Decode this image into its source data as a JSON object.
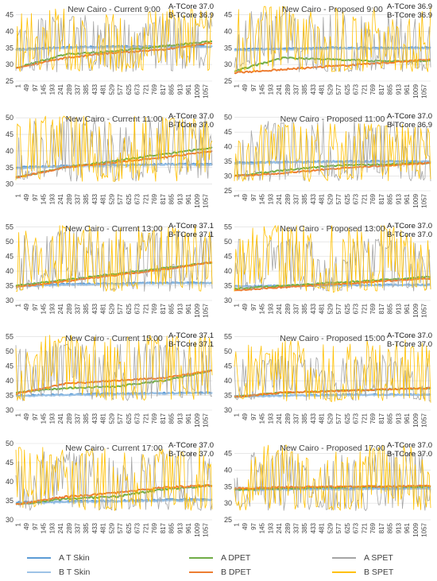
{
  "colors": {
    "a_t_skin": "#5B9BD5",
    "b_t_skin": "#9DC3E6",
    "a_dpet": "#70AD47",
    "b_dpet": "#ED7D31",
    "a_spet": "#A5A5A5",
    "b_spet": "#FFC000",
    "grid": "#D9D9D9",
    "text": "#404040"
  },
  "x_ticks": [
    "1",
    "49",
    "97",
    "145",
    "193",
    "241",
    "289",
    "337",
    "385",
    "433",
    "481",
    "529",
    "577",
    "625",
    "673",
    "721",
    "769",
    "817",
    "865",
    "913",
    "961",
    "1009",
    "1057"
  ],
  "legend": [
    {
      "key": "a_t_skin",
      "label": "A T Skin"
    },
    {
      "key": "a_dpet",
      "label": "A DPET"
    },
    {
      "key": "a_spet",
      "label": "A SPET"
    },
    {
      "key": "b_t_skin",
      "label": "B T Skin"
    },
    {
      "key": "b_dpet",
      "label": "B DPET"
    },
    {
      "key": "b_spet",
      "label": "B SPET"
    }
  ],
  "chart_data": [
    {
      "type": "line",
      "title": "New Cairo - Current 9:00",
      "a_tcore": "A-TCore 37.0",
      "b_tcore": "B-TCore 36.9",
      "y_ticks": [
        25,
        30,
        35,
        40,
        45
      ],
      "ylim": [
        25,
        48
      ],
      "series": [
        {
          "name": "A T Skin",
          "key": "a_t_skin",
          "values": [
            34.5,
            35.2,
            35.4,
            35.5,
            35.5
          ]
        },
        {
          "name": "B T Skin",
          "key": "b_t_skin",
          "values": [
            34.3,
            35.0,
            35.2,
            35.3,
            35.4
          ]
        },
        {
          "name": "A DPET",
          "key": "a_dpet",
          "values": [
            29,
            33,
            34,
            35.5,
            37
          ]
        },
        {
          "name": "B DPET",
          "key": "b_dpet",
          "values": [
            29,
            32,
            33.5,
            34.5,
            36.5
          ]
        },
        {
          "name": "A SPET",
          "key": "a_spet",
          "values": [
            31,
            44,
            30,
            42,
            37
          ]
        },
        {
          "name": "B SPET",
          "key": "b_spet",
          "values": [
            30,
            46,
            31,
            44,
            40
          ]
        }
      ]
    },
    {
      "type": "line",
      "title": "New Cairo - Proposed 9:00",
      "a_tcore": "A-TCore 36.9",
      "b_tcore": "B-TCore 36.9",
      "y_ticks": [
        25,
        30,
        35,
        40,
        45
      ],
      "ylim": [
        25,
        48
      ],
      "series": [
        {
          "name": "A T Skin",
          "key": "a_t_skin",
          "values": [
            34.5,
            34.8,
            35.0,
            35.0,
            35.0
          ]
        },
        {
          "name": "B T Skin",
          "key": "b_t_skin",
          "values": [
            34.3,
            34.6,
            34.8,
            34.8,
            34.9
          ]
        },
        {
          "name": "A DPET",
          "key": "a_dpet",
          "values": [
            28,
            32,
            31.5,
            31,
            31
          ]
        },
        {
          "name": "B DPET",
          "key": "b_dpet",
          "values": [
            27.5,
            28.5,
            29.5,
            30.5,
            31.5
          ]
        },
        {
          "name": "A SPET",
          "key": "a_spet",
          "values": [
            30,
            45,
            30,
            38,
            31
          ]
        },
        {
          "name": "B SPET",
          "key": "b_spet",
          "values": [
            28,
            47,
            29,
            40,
            30
          ]
        }
      ]
    },
    {
      "type": "line",
      "title": "New Cairo - Current 11:00",
      "a_tcore": "A-TCore 37.0",
      "b_tcore": "B-TCore 37.0",
      "y_ticks": [
        30,
        35,
        40,
        45,
        50
      ],
      "ylim": [
        28,
        51
      ],
      "series": [
        {
          "name": "A T Skin",
          "key": "a_t_skin",
          "values": [
            35.0,
            35.5,
            35.8,
            36.0,
            36.0
          ]
        },
        {
          "name": "B T Skin",
          "key": "b_t_skin",
          "values": [
            34.8,
            35.3,
            35.6,
            35.8,
            35.9
          ]
        },
        {
          "name": "A DPET",
          "key": "a_dpet",
          "values": [
            32,
            35,
            37,
            39,
            41
          ]
        },
        {
          "name": "B DPET",
          "key": "b_dpet",
          "values": [
            32,
            35,
            36.5,
            38,
            40
          ]
        },
        {
          "name": "A SPET",
          "key": "a_spet",
          "values": [
            33,
            49,
            32,
            48,
            40
          ]
        },
        {
          "name": "B SPET",
          "key": "b_spet",
          "values": [
            32,
            50,
            31,
            46,
            42
          ]
        }
      ]
    },
    {
      "type": "line",
      "title": "New Cairo - Proposed 11:00",
      "a_tcore": "A-TCore 37.0",
      "b_tcore": "B-TCore 36.9",
      "y_ticks": [
        25,
        30,
        35,
        40,
        45,
        50
      ],
      "ylim": [
        25,
        51
      ],
      "series": [
        {
          "name": "A T Skin",
          "key": "a_t_skin",
          "values": [
            34.5,
            34.8,
            35.0,
            35.0,
            35.0
          ]
        },
        {
          "name": "B T Skin",
          "key": "b_t_skin",
          "values": [
            34.3,
            34.6,
            34.8,
            34.8,
            34.9
          ]
        },
        {
          "name": "A DPET",
          "key": "a_dpet",
          "values": [
            30,
            32,
            33.5,
            34,
            34.5
          ]
        },
        {
          "name": "B DPET",
          "key": "b_dpet",
          "values": [
            30,
            31,
            32.5,
            33.5,
            34.5
          ]
        },
        {
          "name": "A SPET",
          "key": "a_spet",
          "values": [
            31,
            48,
            32,
            45,
            33
          ]
        },
        {
          "name": "B SPET",
          "key": "b_spet",
          "values": [
            29,
            47,
            31,
            46,
            33
          ]
        }
      ]
    },
    {
      "type": "line",
      "title": "New Cairo - Current 13:00",
      "a_tcore": "A-TCore 37.1",
      "b_tcore": "B-TCore 37.1",
      "y_ticks": [
        30,
        35,
        40,
        45,
        50,
        55
      ],
      "ylim": [
        30,
        56
      ],
      "series": [
        {
          "name": "A T Skin",
          "key": "a_t_skin",
          "values": [
            35.0,
            35.5,
            35.8,
            36.0,
            36.0
          ]
        },
        {
          "name": "B T Skin",
          "key": "b_t_skin",
          "values": [
            34.8,
            35.3,
            35.6,
            35.8,
            35.9
          ]
        },
        {
          "name": "A DPET",
          "key": "a_dpet",
          "values": [
            35,
            37,
            39,
            41,
            43
          ]
        },
        {
          "name": "B DPET",
          "key": "b_dpet",
          "values": [
            34.5,
            36.5,
            38.5,
            40.5,
            43
          ]
        },
        {
          "name": "A SPET",
          "key": "a_spet",
          "values": [
            36,
            53,
            35,
            52,
            40
          ]
        },
        {
          "name": "B SPET",
          "key": "b_spet",
          "values": [
            34,
            55,
            33,
            54,
            42
          ]
        }
      ]
    },
    {
      "type": "line",
      "title": "New Cairo - Proposed 13:00",
      "a_tcore": "A-TCore 37.0",
      "b_tcore": "B-TCore 37.0",
      "y_ticks": [
        30,
        35,
        40,
        45,
        50,
        55
      ],
      "ylim": [
        30,
        56
      ],
      "series": [
        {
          "name": "A T Skin",
          "key": "a_t_skin",
          "values": [
            34.8,
            35.0,
            35.2,
            35.3,
            35.3
          ]
        },
        {
          "name": "B T Skin",
          "key": "b_t_skin",
          "values": [
            34.6,
            34.9,
            35.1,
            35.2,
            35.2
          ]
        },
        {
          "name": "A DPET",
          "key": "a_dpet",
          "values": [
            34,
            35,
            36,
            37,
            38
          ]
        },
        {
          "name": "B DPET",
          "key": "b_dpet",
          "values": [
            33.5,
            34.5,
            35.5,
            36.5,
            37.5
          ]
        },
        {
          "name": "A SPET",
          "key": "a_spet",
          "values": [
            35,
            50,
            35,
            48,
            36
          ]
        },
        {
          "name": "B SPET",
          "key": "b_spet",
          "values": [
            33,
            55,
            32,
            53,
            35
          ]
        }
      ]
    },
    {
      "type": "line",
      "title": "New Cairo - Current 15:00",
      "a_tcore": "A-TCore 37.1",
      "b_tcore": "B-TCore 37.1",
      "y_ticks": [
        30,
        35,
        40,
        45,
        50,
        55
      ],
      "ylim": [
        30,
        56
      ],
      "series": [
        {
          "name": "A T Skin",
          "key": "a_t_skin",
          "values": [
            35.0,
            35.3,
            35.6,
            35.8,
            36.0
          ]
        },
        {
          "name": "B T Skin",
          "key": "b_t_skin",
          "values": [
            34.8,
            35.1,
            35.4,
            35.6,
            35.8
          ]
        },
        {
          "name": "A DPET",
          "key": "a_dpet",
          "values": [
            36,
            37.5,
            38,
            40,
            43.5
          ]
        },
        {
          "name": "B DPET",
          "key": "b_dpet",
          "values": [
            35.5,
            39,
            40,
            41,
            43.5
          ]
        },
        {
          "name": "A SPET",
          "key": "a_spet",
          "values": [
            36,
            52,
            35,
            50,
            38
          ]
        },
        {
          "name": "B SPET",
          "key": "b_spet",
          "values": [
            35,
            55,
            34,
            54,
            52
          ]
        }
      ]
    },
    {
      "type": "line",
      "title": "New Cairo - Proposed 15:00",
      "a_tcore": "A-TCore 37.0",
      "b_tcore": "B-TCore 37.0",
      "y_ticks": [
        30,
        35,
        40,
        45,
        50,
        55
      ],
      "ylim": [
        30,
        56
      ],
      "series": [
        {
          "name": "A T Skin",
          "key": "a_t_skin",
          "values": [
            34.8,
            35.0,
            35.2,
            35.3,
            35.3
          ]
        },
        {
          "name": "B T Skin",
          "key": "b_t_skin",
          "values": [
            34.6,
            34.9,
            35.1,
            35.2,
            35.2
          ]
        },
        {
          "name": "A DPET",
          "key": "a_dpet",
          "values": [
            34.5,
            36,
            36.5,
            37,
            37.5
          ]
        },
        {
          "name": "B DPET",
          "key": "b_dpet",
          "values": [
            34.5,
            36,
            36.5,
            37,
            37.5
          ]
        },
        {
          "name": "A SPET",
          "key": "a_spet",
          "values": [
            35,
            48,
            34,
            46,
            33
          ]
        },
        {
          "name": "B SPET",
          "key": "b_spet",
          "values": [
            33,
            53,
            32,
            50,
            32
          ]
        }
      ]
    },
    {
      "type": "line",
      "title": "New Cairo - Current 17:00",
      "a_tcore": "A-TCore 37.0",
      "b_tcore": "B-TCore 37.0",
      "y_ticks": [
        30,
        35,
        40,
        45,
        50
      ],
      "ylim": [
        30,
        50
      ],
      "series": [
        {
          "name": "A T Skin",
          "key": "a_t_skin",
          "values": [
            34.5,
            34.8,
            35.0,
            35.2,
            35.4
          ]
        },
        {
          "name": "B T Skin",
          "key": "b_t_skin",
          "values": [
            34.3,
            34.6,
            34.8,
            35.0,
            35.2
          ]
        },
        {
          "name": "A DPET",
          "key": "a_dpet",
          "values": [
            34,
            35.5,
            36,
            38,
            39
          ]
        },
        {
          "name": "B DPET",
          "key": "b_dpet",
          "values": [
            34,
            36,
            37,
            38.5,
            39
          ]
        },
        {
          "name": "A SPET",
          "key": "a_spet",
          "values": [
            34,
            45,
            33,
            47,
            36
          ]
        },
        {
          "name": "B SPET",
          "key": "b_spet",
          "values": [
            48,
            41,
            34,
            45,
            38
          ]
        }
      ]
    },
    {
      "type": "line",
      "title": "New Cairo - Proposed 17:00",
      "a_tcore": "A-TCore 37.0",
      "b_tcore": "B-TCore 37.0",
      "y_ticks": [
        25,
        30,
        35,
        40,
        45
      ],
      "ylim": [
        25,
        48
      ],
      "series": [
        {
          "name": "A T Skin",
          "key": "a_t_skin",
          "values": [
            34.2,
            34.3,
            34.4,
            34.5,
            34.6
          ]
        },
        {
          "name": "B T Skin",
          "key": "b_t_skin",
          "values": [
            34.0,
            34.1,
            34.2,
            34.3,
            34.4
          ]
        },
        {
          "name": "A DPET",
          "key": "a_dpet",
          "values": [
            34,
            34.5,
            34.8,
            35,
            35
          ]
        },
        {
          "name": "B DPET",
          "key": "b_dpet",
          "values": [
            34.5,
            34.8,
            35,
            35.1,
            35.2
          ]
        },
        {
          "name": "A SPET",
          "key": "a_spet",
          "values": [
            33,
            45,
            32,
            40,
            34
          ]
        },
        {
          "name": "B SPET",
          "key": "b_spet",
          "values": [
            32,
            47,
            30,
            44,
            33
          ]
        }
      ]
    }
  ]
}
